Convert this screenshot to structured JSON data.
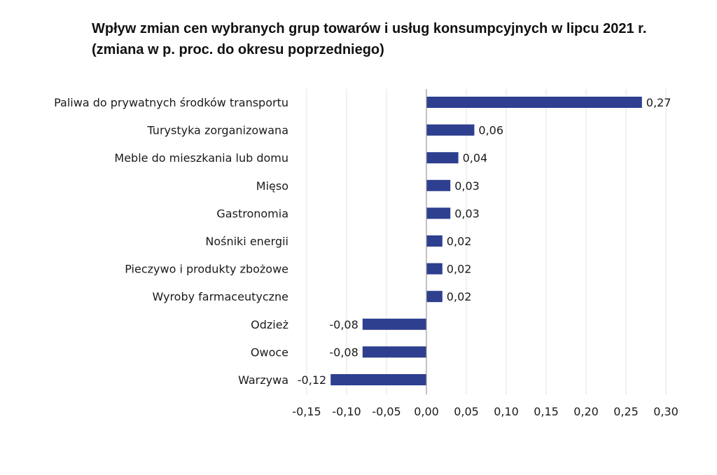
{
  "chart_data": {
    "type": "bar",
    "orientation": "horizontal",
    "title": "Wpływ zmian cen wybranych grup towarów i usług konsumpcyjnych w lipcu 2021 r.",
    "subtitle": "(zmiana w p. proc. do okresu poprzedniego)",
    "categories": [
      "Paliwa do prywatnych środków transportu",
      "Turystyka zorganizowana",
      "Meble do mieszkania lub domu",
      "Mięso",
      "Gastronomia",
      "Nośniki energii",
      "Pieczywo i produkty zbożowe",
      "Wyroby farmaceutyczne",
      "Odzież",
      "Owoce",
      "Warzywa"
    ],
    "values": [
      0.27,
      0.06,
      0.04,
      0.03,
      0.03,
      0.02,
      0.02,
      0.02,
      -0.08,
      -0.08,
      -0.12
    ],
    "value_labels": [
      "0,27",
      "0,06",
      "0,04",
      "0,03",
      "0,03",
      "0,02",
      "0,02",
      "0,02",
      "-0,08",
      "-0,08",
      "-0,12"
    ],
    "xlim": [
      -0.15,
      0.3
    ],
    "xticks": [
      -0.15,
      -0.1,
      -0.05,
      0.0,
      0.05,
      0.1,
      0.15,
      0.2,
      0.25,
      0.3
    ],
    "xtick_labels": [
      "-0,15",
      "-0,10",
      "-0,05",
      "0,00",
      "0,05",
      "0,10",
      "0,15",
      "0,20",
      "0,25",
      "0,30"
    ],
    "grid": "vertical",
    "bar_color": "#2e3f8f",
    "grid_color": "#e3e3e3",
    "axis_color": "#9a9a9a"
  }
}
